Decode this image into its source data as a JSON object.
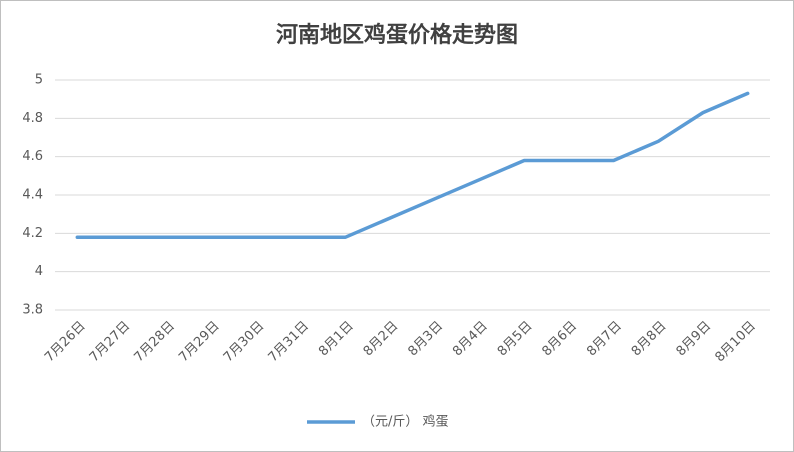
{
  "chart_data": {
    "type": "line",
    "title": "河南地区鸡蛋价格走势图",
    "categories": [
      "7月26日",
      "7月27日",
      "7月28日",
      "7月29日",
      "7月30日",
      "7月31日",
      "8月1日",
      "8月2日",
      "8月3日",
      "8月4日",
      "8月5日",
      "8月6日",
      "8月7日",
      "8月8日",
      "8月9日",
      "8月10日"
    ],
    "series": [
      {
        "name": "（元/斤） 鸡蛋",
        "color": "#5b9bd5",
        "values": [
          4.18,
          4.18,
          4.18,
          4.18,
          4.18,
          4.18,
          4.18,
          4.28,
          4.38,
          4.48,
          4.58,
          4.58,
          4.58,
          4.68,
          4.83,
          4.93
        ]
      }
    ],
    "ylim": [
      3.8,
      5
    ],
    "yticks": [
      3.8,
      4,
      4.2,
      4.4,
      4.6,
      4.8,
      5
    ],
    "grid": true,
    "legend": "bottom"
  }
}
